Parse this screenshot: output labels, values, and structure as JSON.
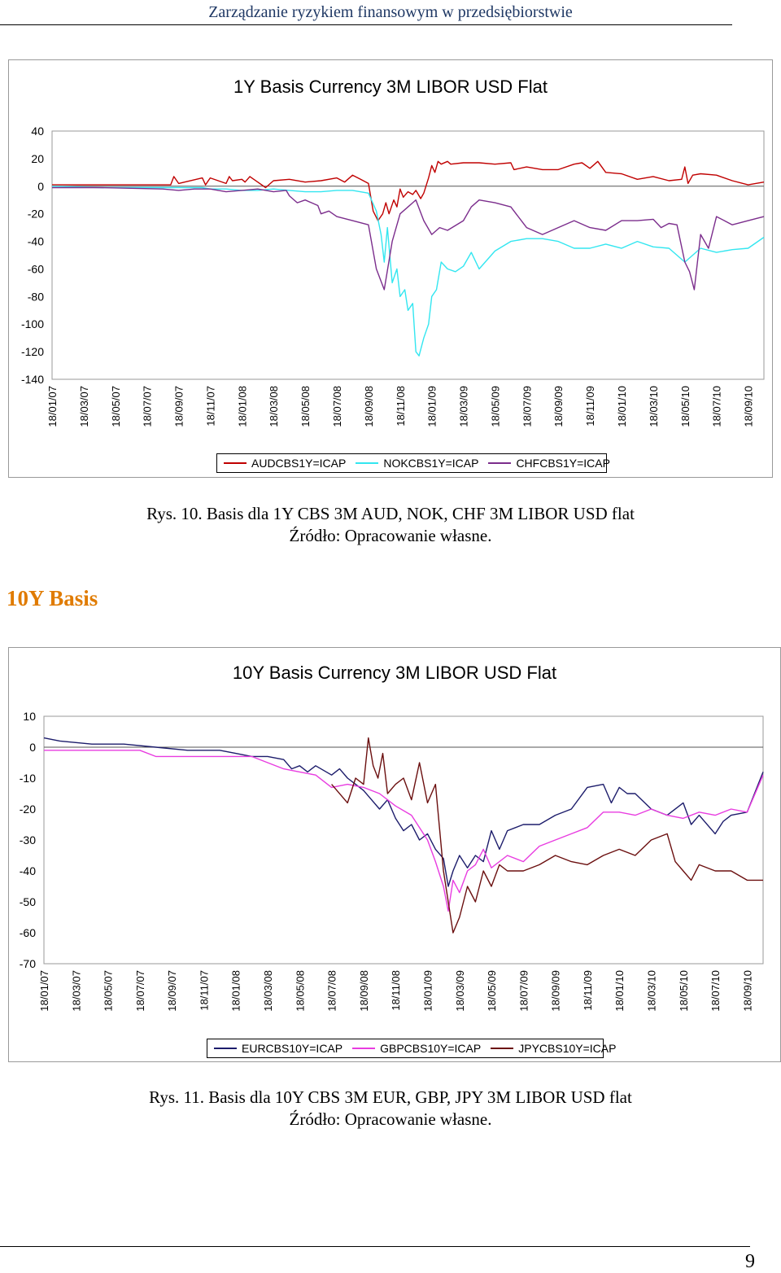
{
  "header": {
    "title": "Zarządzanie ryzykiem finansowym w przedsiębiorstwie"
  },
  "figure1": {
    "caption": "Rys. 10. Basis dla 1Y CBS 3M AUD, NOK, CHF 3M LIBOR USD flat",
    "source": "Źródło: Opracowanie własne."
  },
  "section": {
    "heading": "10Y Basis"
  },
  "figure2": {
    "caption": "Rys. 11. Basis dla 10Y CBS 3M EUR, GBP, JPY 3M LIBOR USD flat",
    "source": "Źródło: Opracowanie własne."
  },
  "footer": {
    "page_number": "9"
  },
  "chart_data": [
    {
      "type": "line",
      "title": "1Y Basis Currency 3M LIBOR USD Flat",
      "xlabel": "",
      "ylabel": "",
      "ylim": [
        -140,
        40
      ],
      "yticks": [
        40,
        20,
        0,
        -20,
        -40,
        -60,
        -80,
        -100,
        -120,
        -140
      ],
      "x_tick_labels": [
        "18/01/07",
        "18/03/07",
        "18/05/07",
        "18/07/07",
        "18/09/07",
        "18/11/07",
        "18/01/08",
        "18/03/08",
        "18/05/08",
        "18/07/08",
        "18/09/08",
        "18/11/08",
        "18/01/09",
        "18/03/09",
        "18/05/09",
        "18/07/09",
        "18/09/09",
        "18/11/09",
        "18/01/10",
        "18/03/10",
        "18/05/10",
        "18/07/10",
        "18/09/10"
      ],
      "x_tick_positions": [
        0,
        2,
        4,
        6,
        8,
        10,
        12,
        14,
        16,
        18,
        20,
        22,
        24,
        26,
        28,
        30,
        32,
        34,
        36,
        38,
        40,
        42,
        44
      ],
      "xlim": [
        0,
        45
      ],
      "grid": false,
      "legend_position": "bottom",
      "series": [
        {
          "name": "AUDCBS1Y=ICAP",
          "color": "#c00000",
          "x": [
            0,
            3,
            7.5,
            7.7,
            8,
            9.5,
            9.7,
            10,
            11,
            11.2,
            11.4,
            12,
            12.2,
            12.5,
            13,
            13.5,
            14,
            15,
            16,
            17,
            18,
            18.5,
            19,
            19.5,
            20,
            20.3,
            20.6,
            20.9,
            21.1,
            21.3,
            21.6,
            21.8,
            22,
            22.2,
            22.5,
            22.8,
            23,
            23.3,
            23.5,
            23.8,
            24,
            24.2,
            24.4,
            24.6,
            25,
            25.2,
            26,
            27,
            28,
            29,
            29.2,
            30,
            31,
            32,
            33,
            33.5,
            34,
            34.5,
            35,
            36,
            37,
            38,
            39,
            39.8,
            40,
            40.2,
            40.5,
            41,
            42,
            43,
            44,
            45
          ],
          "y": [
            1,
            1,
            1,
            7,
            2,
            6,
            1,
            6,
            2,
            7,
            4,
            5,
            3,
            7,
            3,
            -1,
            4,
            5,
            3,
            4,
            6,
            3,
            8,
            5,
            2,
            -18,
            -25,
            -20,
            -12,
            -20,
            -10,
            -15,
            -2,
            -8,
            -4,
            -6,
            -3,
            -9,
            -5,
            6,
            15,
            10,
            18,
            16,
            18,
            16,
            17,
            17,
            16,
            17,
            12,
            14,
            12,
            12,
            16,
            17,
            13,
            18,
            10,
            9,
            5,
            7,
            4,
            5,
            14,
            2,
            8,
            9,
            8,
            4,
            1,
            3
          ]
        },
        {
          "name": "NOKCBS1Y=ICAP",
          "color": "#33e6f0",
          "x": [
            0,
            3,
            7,
            9.5,
            10,
            11,
            12,
            13,
            14,
            15,
            16,
            17,
            18,
            19,
            20,
            20.5,
            20.8,
            21,
            21.2,
            21.5,
            21.8,
            22,
            22.3,
            22.5,
            22.8,
            23,
            23.2,
            23.5,
            23.8,
            24,
            24.3,
            24.6,
            25,
            25.5,
            26,
            26.5,
            27,
            28,
            29,
            30,
            31,
            32,
            33,
            34,
            35,
            36,
            37,
            38,
            39,
            40,
            40.5,
            41,
            42,
            43,
            44,
            45
          ],
          "y": [
            0,
            -1,
            -1,
            -1,
            -2,
            -2,
            -3,
            -3,
            -2,
            -3,
            -4,
            -4,
            -3,
            -3,
            -5,
            -18,
            -35,
            -55,
            -30,
            -70,
            -60,
            -80,
            -75,
            -90,
            -85,
            -120,
            -123,
            -110,
            -100,
            -80,
            -75,
            -55,
            -60,
            -62,
            -58,
            -48,
            -60,
            -47,
            -40,
            -38,
            -38,
            -40,
            -45,
            -45,
            -42,
            -45,
            -40,
            -44,
            -45,
            -55,
            -50,
            -45,
            -48,
            -46,
            -45,
            -37
          ]
        },
        {
          "name": "CHFCBS1Y=ICAP",
          "color": "#7b2d8c",
          "x": [
            0,
            3,
            7,
            8,
            9,
            10,
            11,
            12,
            13,
            14,
            14.8,
            15,
            15.5,
            16,
            16.8,
            17,
            17.5,
            18,
            19,
            20,
            20.5,
            21,
            21.5,
            22,
            22.5,
            23,
            23.5,
            24,
            24.5,
            25,
            26,
            26.5,
            27,
            28,
            29,
            30,
            31,
            32,
            33,
            34,
            35,
            36,
            37,
            38,
            38.5,
            39,
            39.5,
            40,
            40.3,
            40.6,
            41,
            41.5,
            42,
            42.5,
            43,
            44,
            45
          ],
          "y": [
            -1,
            -1,
            -2,
            -3,
            -2,
            -2,
            -4,
            -3,
            -2,
            -4,
            -3,
            -7,
            -12,
            -10,
            -14,
            -20,
            -18,
            -22,
            -25,
            -28,
            -60,
            -75,
            -40,
            -20,
            -15,
            -10,
            -25,
            -35,
            -30,
            -32,
            -25,
            -15,
            -10,
            -12,
            -15,
            -30,
            -35,
            -30,
            -25,
            -30,
            -32,
            -25,
            -25,
            -24,
            -30,
            -27,
            -28,
            -55,
            -62,
            -75,
            -35,
            -45,
            -22,
            -25,
            -28,
            -25,
            -22
          ]
        }
      ]
    },
    {
      "type": "line",
      "title": "10Y Basis Currency 3M LIBOR USD Flat",
      "xlabel": "",
      "ylabel": "",
      "ylim": [
        -70,
        10
      ],
      "yticks": [
        10,
        0,
        -10,
        -20,
        -30,
        -40,
        -50,
        -60,
        -70
      ],
      "x_tick_labels": [
        "18/01/07",
        "18/03/07",
        "18/05/07",
        "18/07/07",
        "18/09/07",
        "18/11/07",
        "18/01/08",
        "18/03/08",
        "18/05/08",
        "18/07/08",
        "18/09/08",
        "18/11/08",
        "18/01/09",
        "18/03/09",
        "18/05/09",
        "18/07/09",
        "18/09/09",
        "18/11/09",
        "18/01/10",
        "18/03/10",
        "18/05/10",
        "18/07/10",
        "18/09/10"
      ],
      "x_tick_positions": [
        0,
        2,
        4,
        6,
        8,
        10,
        12,
        14,
        16,
        18,
        20,
        22,
        24,
        26,
        28,
        30,
        32,
        34,
        36,
        38,
        40,
        42,
        44
      ],
      "xlim": [
        0,
        45
      ],
      "grid": false,
      "legend_position": "bottom",
      "series": [
        {
          "name": "EURCBS10Y=ICAP",
          "color": "#1c1c6b",
          "x": [
            0,
            1,
            3,
            5,
            7,
            9,
            10,
            11,
            12,
            13,
            14,
            15,
            15.5,
            16,
            16.5,
            17,
            18,
            18.5,
            19,
            19.5,
            20,
            20.5,
            21,
            21.5,
            22,
            22.5,
            23,
            23.5,
            24,
            24.5,
            25,
            25.3,
            25.6,
            26,
            26.5,
            27,
            27.5,
            28,
            28.5,
            29,
            30,
            31,
            32,
            33,
            34,
            35,
            35.5,
            36,
            36.5,
            37,
            38,
            39,
            40,
            40.5,
            41,
            42,
            42.5,
            43,
            44,
            45
          ],
          "y": [
            3,
            2,
            1,
            1,
            0,
            -1,
            -1,
            -1,
            -2,
            -3,
            -3,
            -4,
            -7,
            -6,
            -8,
            -6,
            -9,
            -7,
            -10,
            -12,
            -14,
            -17,
            -20,
            -17,
            -23,
            -27,
            -25,
            -30,
            -28,
            -33,
            -36,
            -45,
            -40,
            -35,
            -39,
            -35,
            -37,
            -27,
            -33,
            -27,
            -25,
            -25,
            -22,
            -20,
            -13,
            -12,
            -18,
            -13,
            -15,
            -15,
            -20,
            -22,
            -18,
            -25,
            -22,
            -28,
            -24,
            -22,
            -21,
            -8
          ]
        },
        {
          "name": "GBPCBS10Y=ICAP",
          "color": "#e83ce0",
          "x": [
            0,
            2,
            4,
            6,
            7,
            8,
            9,
            10,
            11,
            12,
            13,
            14,
            15,
            16,
            17,
            18,
            19,
            20,
            21,
            22,
            23,
            24,
            24.5,
            25,
            25.3,
            25.6,
            26,
            26.5,
            27,
            27.5,
            28,
            29,
            30,
            31,
            32,
            33,
            34,
            35,
            36,
            37,
            38,
            39,
            40,
            41,
            42,
            43,
            44,
            45
          ],
          "y": [
            -1,
            -1,
            -1,
            -1,
            -3,
            -3,
            -3,
            -3,
            -3,
            -3,
            -3,
            -5,
            -7,
            -8,
            -9,
            -13,
            -12,
            -13,
            -15,
            -19,
            -22,
            -30,
            -37,
            -45,
            -53,
            -43,
            -47,
            -40,
            -38,
            -33,
            -39,
            -35,
            -37,
            -32,
            -30,
            -28,
            -26,
            -21,
            -21,
            -22,
            -20,
            -22,
            -23,
            -21,
            -22,
            -20,
            -21,
            -9
          ]
        },
        {
          "name": "JPYCBS10Y=ICAP",
          "color": "#6b0f0f",
          "x": [
            0,
            18,
            19,
            19.5,
            20,
            20.3,
            20.6,
            20.9,
            21.2,
            21.5,
            22,
            22.5,
            23,
            23.5,
            24,
            24.5,
            25,
            25.3,
            25.6,
            26,
            26.5,
            27,
            27.5,
            28,
            28.5,
            29,
            30,
            31,
            32,
            33,
            34,
            35,
            36,
            37,
            38,
            39,
            39.5,
            40,
            40.5,
            41,
            42,
            43,
            44,
            45
          ],
          "y": [
            null,
            -12,
            -18,
            -10,
            -12,
            3,
            -6,
            -10,
            -2,
            -15,
            -12,
            -10,
            -17,
            -5,
            -18,
            -12,
            -40,
            -50,
            -60,
            -55,
            -45,
            -50,
            -40,
            -45,
            -38,
            -40,
            -40,
            -38,
            -35,
            -37,
            -38,
            -35,
            -33,
            -35,
            -30,
            -28,
            -37,
            -40,
            -43,
            -38,
            -40,
            -40,
            -43,
            -43
          ]
        }
      ]
    }
  ]
}
